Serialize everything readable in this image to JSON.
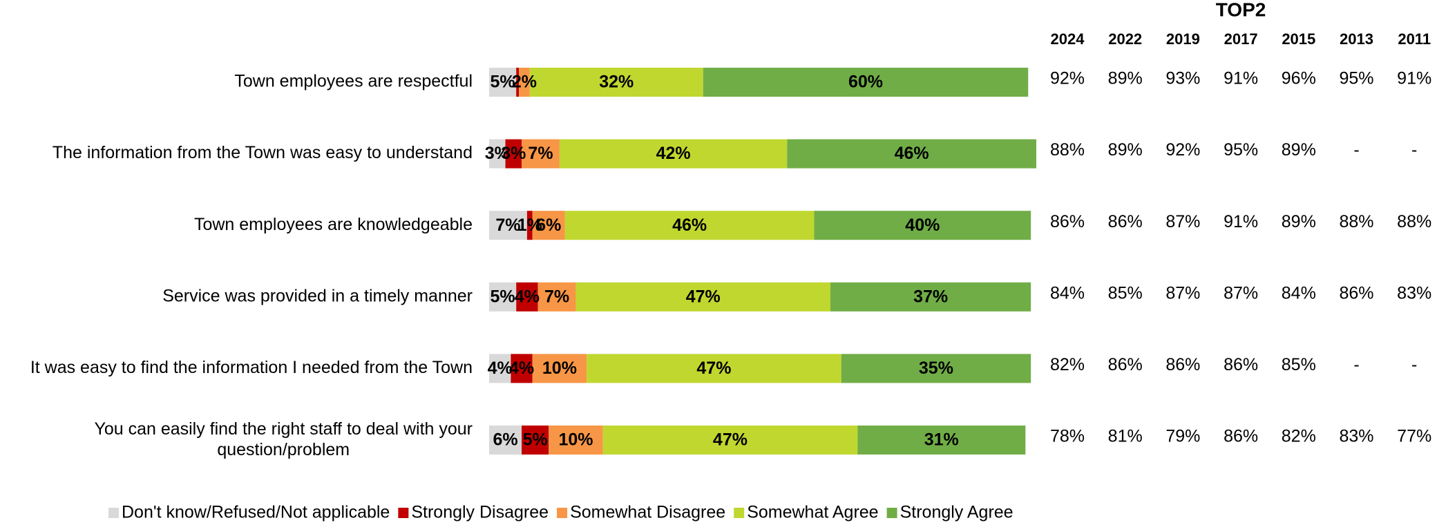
{
  "chart_data": {
    "type": "stacked-bar-horizontal",
    "categories": [
      "Town employees are respectful",
      "The information from the Town was easy to understand",
      "Town employees are knowledgeable",
      "Service was provided in a timely manner",
      "It was easy to find the information I needed from the Town",
      "You can easily find the right staff to deal with your question/problem"
    ],
    "series": [
      {
        "name": "Don't know/Refused/Not applicable",
        "color": "#d9d9d9",
        "values": [
          5,
          3,
          7,
          5,
          4,
          6
        ],
        "value_labels": [
          "5%",
          "3%",
          "7%",
          "5%",
          "4%",
          "6%"
        ]
      },
      {
        "name": "Strongly Disagree",
        "color": "#c00000",
        "values": [
          0.5,
          3,
          1,
          4,
          4,
          5
        ],
        "value_labels": [
          null,
          "3%",
          "1%",
          "4%",
          "4%",
          "5%"
        ]
      },
      {
        "name": "Somewhat Disagree",
        "color": "#f79646",
        "values": [
          2,
          7,
          6,
          7,
          10,
          10
        ],
        "value_labels": [
          "2%",
          "7%",
          "6%",
          "7%",
          "10%",
          "10%"
        ]
      },
      {
        "name": "Somewhat Agree",
        "color": "#c0d72f",
        "values": [
          32,
          42,
          46,
          47,
          47,
          47
        ],
        "value_labels": [
          "32%",
          "42%",
          "46%",
          "47%",
          "47%",
          "47%"
        ]
      },
      {
        "name": "Strongly Agree",
        "color": "#70ad47",
        "values": [
          60,
          46,
          40,
          37,
          35,
          31
        ],
        "value_labels": [
          "60%",
          "46%",
          "40%",
          "37%",
          "35%",
          "31%"
        ]
      }
    ],
    "legend": "bottom",
    "top2": {
      "title": "TOP2",
      "years": [
        "2024",
        "2022",
        "2019",
        "2017",
        "2015",
        "2013",
        "2011"
      ],
      "rows": [
        [
          "92%",
          "89%",
          "93%",
          "91%",
          "96%",
          "95%",
          "91%"
        ],
        [
          "88%",
          "89%",
          "92%",
          "95%",
          "89%",
          "-",
          "-"
        ],
        [
          "86%",
          "86%",
          "87%",
          "91%",
          "89%",
          "88%",
          "88%"
        ],
        [
          "84%",
          "85%",
          "87%",
          "87%",
          "84%",
          "86%",
          "83%"
        ],
        [
          "82%",
          "86%",
          "86%",
          "86%",
          "85%",
          "-",
          "-"
        ],
        [
          "78%",
          "81%",
          "79%",
          "86%",
          "82%",
          "83%",
          "77%"
        ]
      ]
    }
  }
}
